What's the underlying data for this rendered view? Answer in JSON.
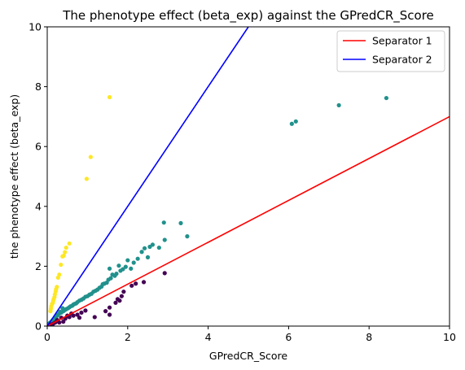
{
  "chart_data": {
    "type": "scatter",
    "title": "The phenotype effect (beta_exp) against the GPredCR_Score",
    "xlabel": "GPredCR_Score",
    "ylabel": "the phenotype effect (beta_exp)",
    "xlim": [
      0,
      10
    ],
    "ylim": [
      0,
      10
    ],
    "xticks": [
      0,
      2,
      4,
      6,
      8,
      10
    ],
    "yticks": [
      0,
      2,
      4,
      6,
      8,
      10
    ],
    "grid": false,
    "legend_position": "top-right",
    "lines": [
      {
        "name": "Separator 1",
        "color": "#ff0000",
        "slope": 0.7
      },
      {
        "name": "Separator 2",
        "color": "#0000ff",
        "slope": 2.0
      }
    ],
    "groups": [
      {
        "color": "#fde725",
        "points": [
          [
            1.55,
            7.65
          ],
          [
            1.08,
            5.65
          ],
          [
            0.98,
            4.92
          ],
          [
            0.55,
            2.76
          ],
          [
            0.47,
            2.62
          ],
          [
            0.44,
            2.47
          ],
          [
            0.41,
            2.35
          ],
          [
            0.38,
            2.33
          ],
          [
            0.34,
            2.05
          ],
          [
            0.3,
            1.72
          ],
          [
            0.27,
            1.62
          ],
          [
            0.24,
            1.31
          ],
          [
            0.22,
            1.23
          ],
          [
            0.21,
            1.16
          ],
          [
            0.19,
            1.06
          ],
          [
            0.18,
            0.97
          ],
          [
            0.16,
            0.9
          ],
          [
            0.15,
            0.85
          ],
          [
            0.14,
            0.78
          ],
          [
            0.12,
            0.74
          ],
          [
            0.1,
            0.66
          ],
          [
            0.09,
            0.58
          ],
          [
            0.08,
            0.5
          ]
        ]
      },
      {
        "color": "#21918c",
        "points": [
          [
            8.43,
            7.62
          ],
          [
            7.25,
            7.38
          ],
          [
            6.18,
            6.84
          ],
          [
            6.08,
            6.76
          ],
          [
            3.48,
            3.0
          ],
          [
            3.32,
            3.44
          ],
          [
            2.9,
            3.46
          ],
          [
            2.92,
            2.88
          ],
          [
            2.78,
            2.62
          ],
          [
            2.62,
            2.72
          ],
          [
            2.55,
            2.65
          ],
          [
            2.5,
            2.3
          ],
          [
            2.42,
            2.6
          ],
          [
            2.35,
            2.48
          ],
          [
            2.25,
            2.25
          ],
          [
            2.15,
            2.12
          ],
          [
            2.08,
            1.92
          ],
          [
            2.0,
            2.2
          ],
          [
            1.95,
            1.98
          ],
          [
            1.88,
            1.9
          ],
          [
            1.82,
            1.85
          ],
          [
            1.78,
            2.02
          ],
          [
            1.72,
            1.75
          ],
          [
            1.68,
            1.68
          ],
          [
            1.62,
            1.72
          ],
          [
            1.58,
            1.6
          ],
          [
            1.52,
            1.55
          ],
          [
            1.48,
            1.45
          ],
          [
            1.42,
            1.42
          ],
          [
            1.38,
            1.4
          ],
          [
            1.55,
            1.92
          ],
          [
            1.35,
            1.32
          ],
          [
            1.3,
            1.28
          ],
          [
            1.25,
            1.22
          ],
          [
            1.2,
            1.18
          ],
          [
            1.15,
            1.15
          ],
          [
            1.1,
            1.08
          ],
          [
            1.05,
            1.05
          ],
          [
            1.0,
            1.0
          ],
          [
            0.95,
            0.98
          ],
          [
            0.9,
            0.92
          ],
          [
            0.85,
            0.88
          ],
          [
            0.8,
            0.85
          ],
          [
            0.75,
            0.8
          ],
          [
            0.72,
            0.76
          ],
          [
            0.68,
            0.74
          ],
          [
            0.65,
            0.72
          ],
          [
            0.62,
            0.68
          ],
          [
            0.58,
            0.66
          ],
          [
            0.55,
            0.63
          ],
          [
            0.52,
            0.6
          ],
          [
            0.48,
            0.57
          ],
          [
            0.45,
            0.55
          ],
          [
            0.42,
            0.52
          ],
          [
            0.4,
            0.5
          ],
          [
            0.38,
            0.6
          ],
          [
            0.35,
            0.45
          ],
          [
            0.32,
            0.48
          ],
          [
            0.3,
            0.42
          ],
          [
            0.28,
            0.4
          ],
          [
            0.26,
            0.36
          ],
          [
            0.24,
            0.34
          ],
          [
            0.22,
            0.32
          ],
          [
            0.2,
            0.28
          ],
          [
            0.18,
            0.25
          ],
          [
            0.16,
            0.22
          ],
          [
            0.14,
            0.2
          ],
          [
            0.12,
            0.17
          ],
          [
            0.1,
            0.14
          ],
          [
            0.08,
            0.12
          ],
          [
            0.06,
            0.1
          ],
          [
            0.05,
            0.08
          ],
          [
            0.04,
            0.06
          ],
          [
            0.03,
            0.05
          ]
        ]
      },
      {
        "color": "#440154",
        "points": [
          [
            2.92,
            1.77
          ],
          [
            2.4,
            1.47
          ],
          [
            2.2,
            1.42
          ],
          [
            2.1,
            1.35
          ],
          [
            1.9,
            1.15
          ],
          [
            1.85,
            1.0
          ],
          [
            1.75,
            0.9
          ],
          [
            1.8,
            0.85
          ],
          [
            1.7,
            0.78
          ],
          [
            1.55,
            0.62
          ],
          [
            1.55,
            0.38
          ],
          [
            1.45,
            0.5
          ],
          [
            1.18,
            0.3
          ],
          [
            0.95,
            0.52
          ],
          [
            0.85,
            0.45
          ],
          [
            0.8,
            0.28
          ],
          [
            0.75,
            0.38
          ],
          [
            0.65,
            0.35
          ],
          [
            0.6,
            0.42
          ],
          [
            0.55,
            0.3
          ],
          [
            0.5,
            0.35
          ],
          [
            0.45,
            0.25
          ],
          [
            0.4,
            0.15
          ],
          [
            0.35,
            0.28
          ],
          [
            0.3,
            0.12
          ],
          [
            0.25,
            0.2
          ],
          [
            0.2,
            0.12
          ],
          [
            0.15,
            0.08
          ],
          [
            0.1,
            0.05
          ]
        ]
      }
    ]
  }
}
